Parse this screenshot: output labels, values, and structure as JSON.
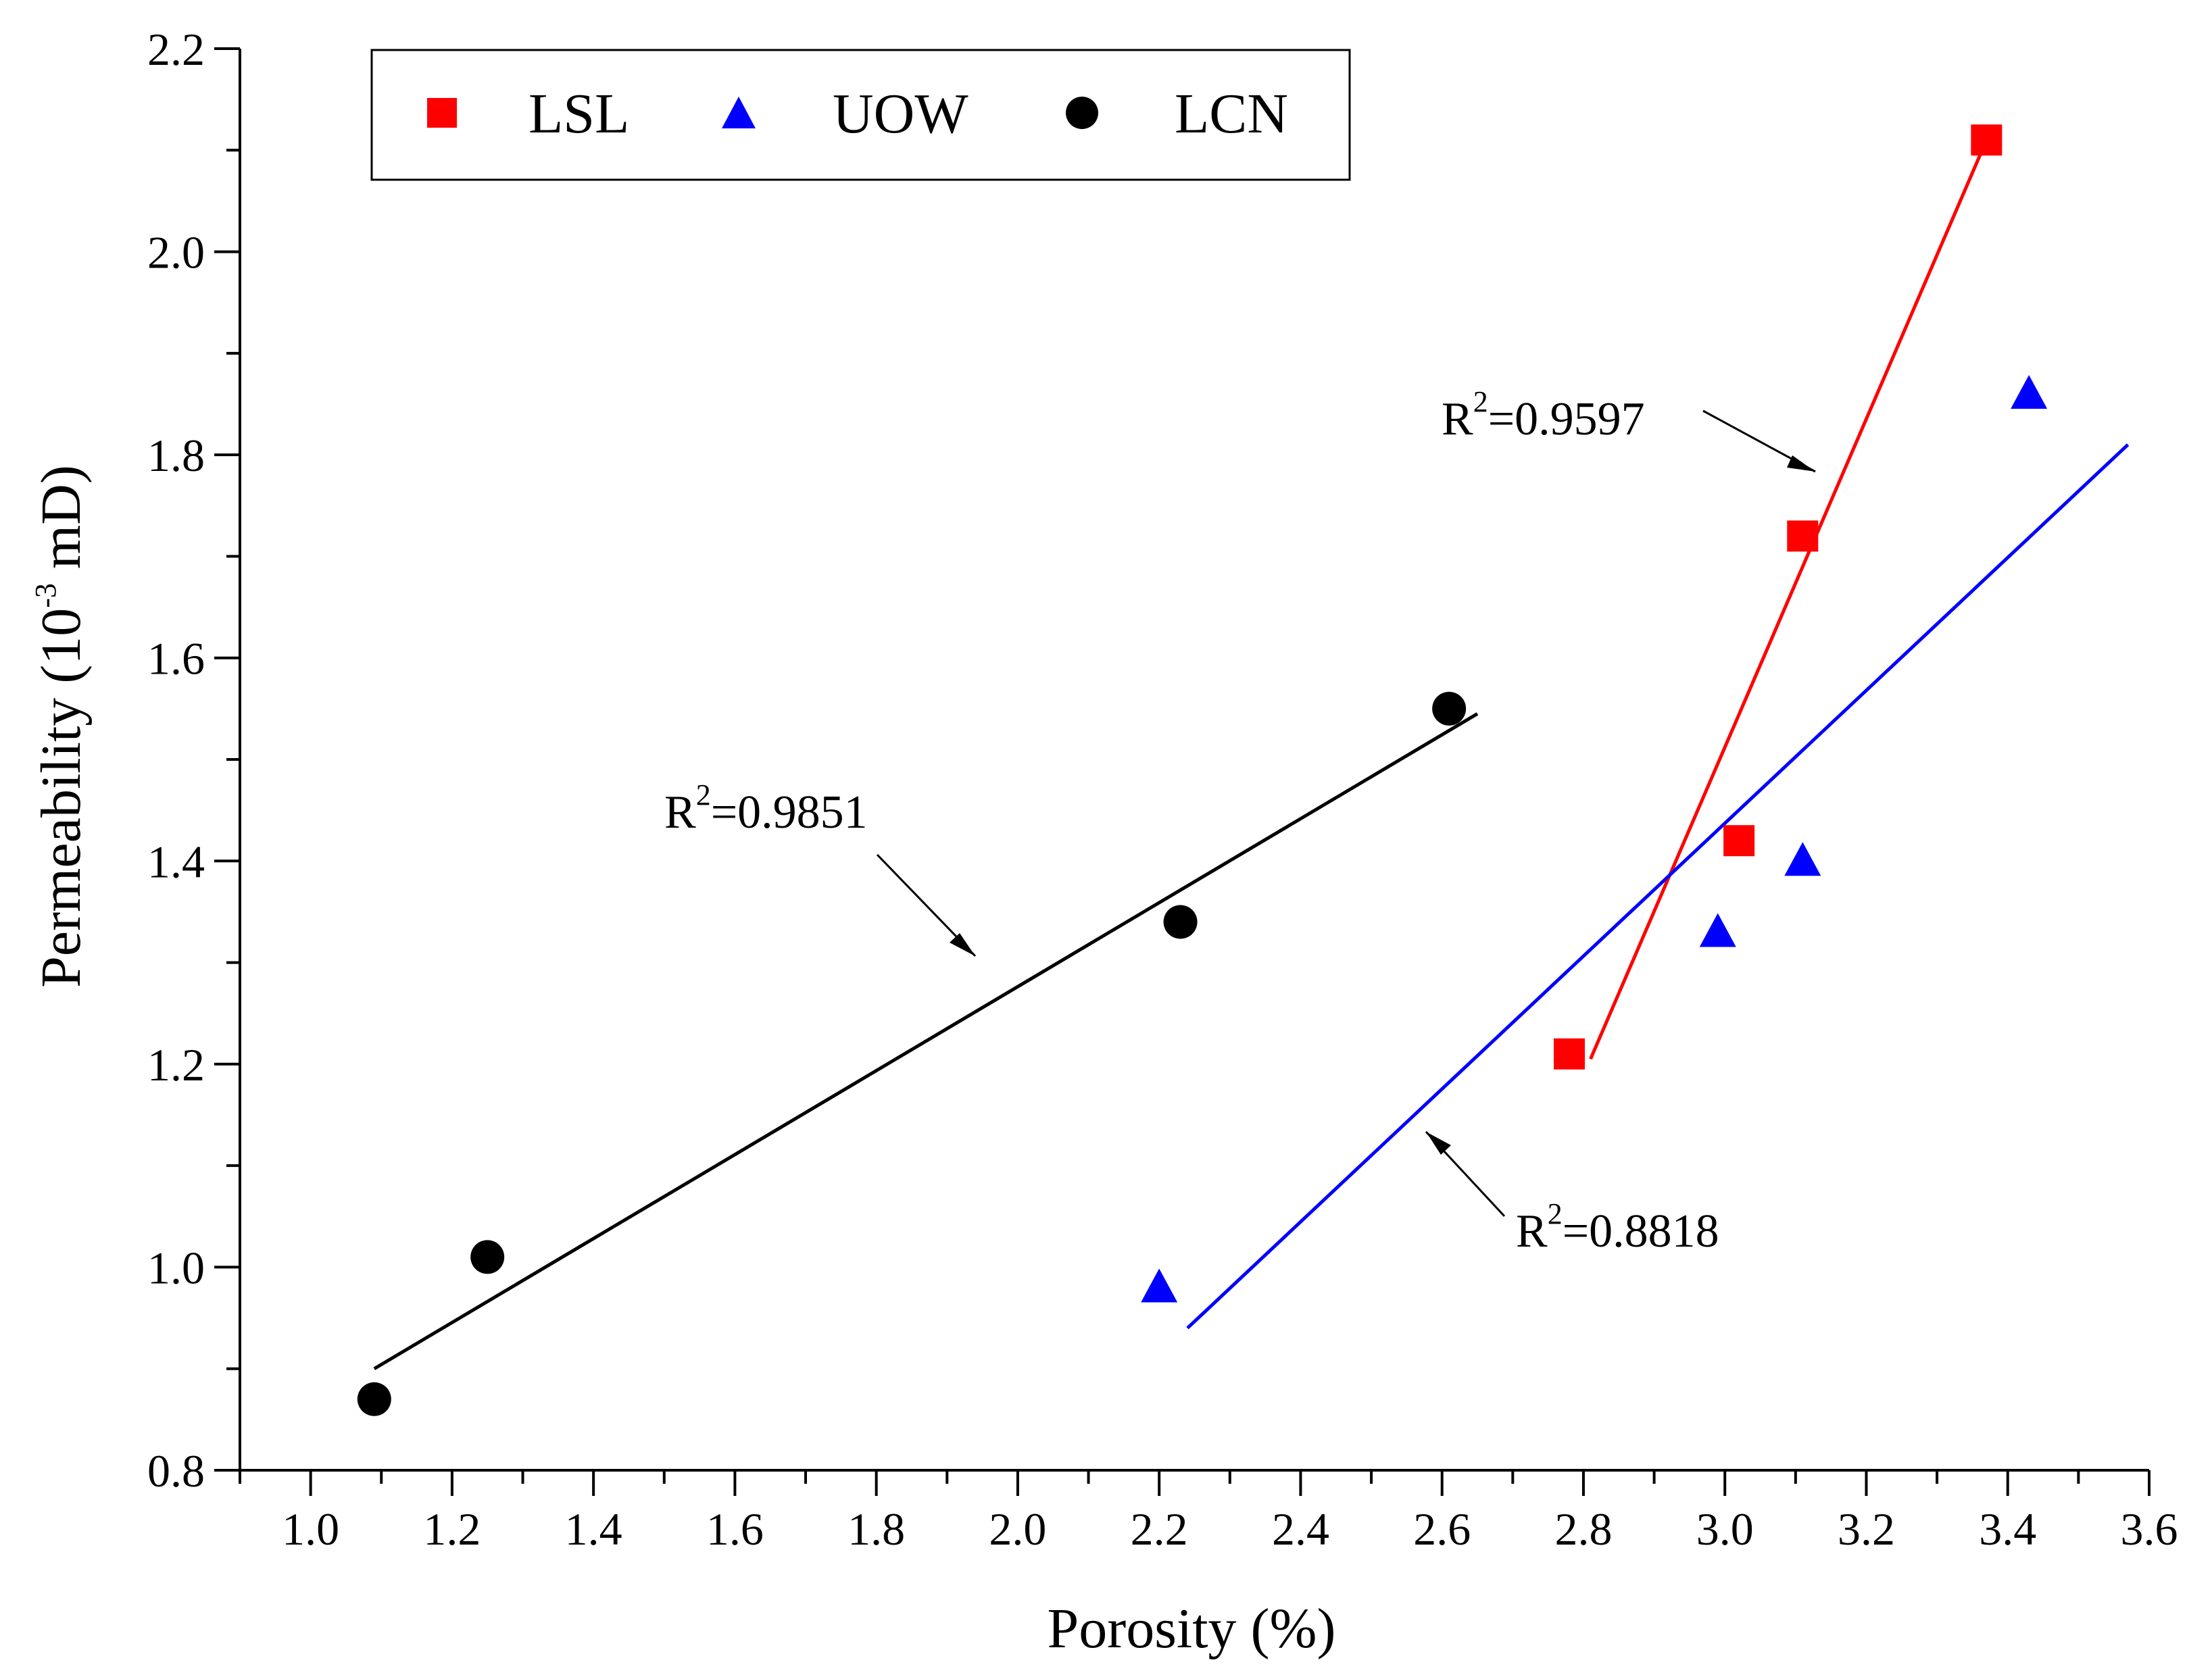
{
  "chart_data": {
    "type": "scatter",
    "xlabel": "Porosity (%)",
    "ylabel": "Permeability (10^-3 mD)",
    "ylabel_parts": {
      "main": "Permeability (10",
      "sup": "-3",
      "unit": " mD)"
    },
    "xlim": [
      0.9,
      3.6
    ],
    "ylim": [
      0.8,
      2.2
    ],
    "x_ticks": [
      "1.0",
      "1.2",
      "1.4",
      "1.6",
      "1.8",
      "2.0",
      "2.2",
      "2.4",
      "2.6",
      "2.8",
      "3.0",
      "3.2",
      "3.4",
      "3.6"
    ],
    "y_ticks": [
      "0.8",
      "1.0",
      "1.2",
      "1.4",
      "1.6",
      "1.8",
      "2.0",
      "2.2"
    ],
    "grid": false,
    "legend_position": "top-left",
    "series": [
      {
        "name": "LSL",
        "color": "#ff0000",
        "marker": "square",
        "points": [
          [
            2.78,
            1.21
          ],
          [
            3.02,
            1.42
          ],
          [
            3.11,
            1.72
          ],
          [
            3.37,
            2.11
          ]
        ],
        "fit_line": [
          [
            2.81,
            1.205
          ],
          [
            3.37,
            2.11
          ]
        ],
        "r2_label": "R2=0.9597",
        "r2_parts": {
          "r": "R",
          "sup": "2",
          "rest": "=0.9597"
        }
      },
      {
        "name": "UOW",
        "color": "#0000ff",
        "marker": "triangle",
        "points": [
          [
            2.2,
            0.98
          ],
          [
            2.99,
            1.33
          ],
          [
            3.11,
            1.4
          ],
          [
            3.43,
            1.86
          ]
        ],
        "fit_line": [
          [
            2.24,
            0.94
          ],
          [
            3.57,
            1.81
          ]
        ],
        "r2_label": "R2=0.8818",
        "r2_parts": {
          "r": "R",
          "sup": "2",
          "rest": "=0.8818"
        }
      },
      {
        "name": "LCN",
        "color": "#000000",
        "marker": "circle",
        "points": [
          [
            1.09,
            0.87
          ],
          [
            1.25,
            1.01
          ],
          [
            2.23,
            1.34
          ],
          [
            2.61,
            1.55
          ]
        ],
        "fit_line": [
          [
            1.09,
            0.9
          ],
          [
            2.65,
            1.545
          ]
        ],
        "r2_label": "R2=0.9851",
        "r2_parts": {
          "r": "R",
          "sup": "2",
          "rest": "=0.9851"
        }
      }
    ]
  }
}
